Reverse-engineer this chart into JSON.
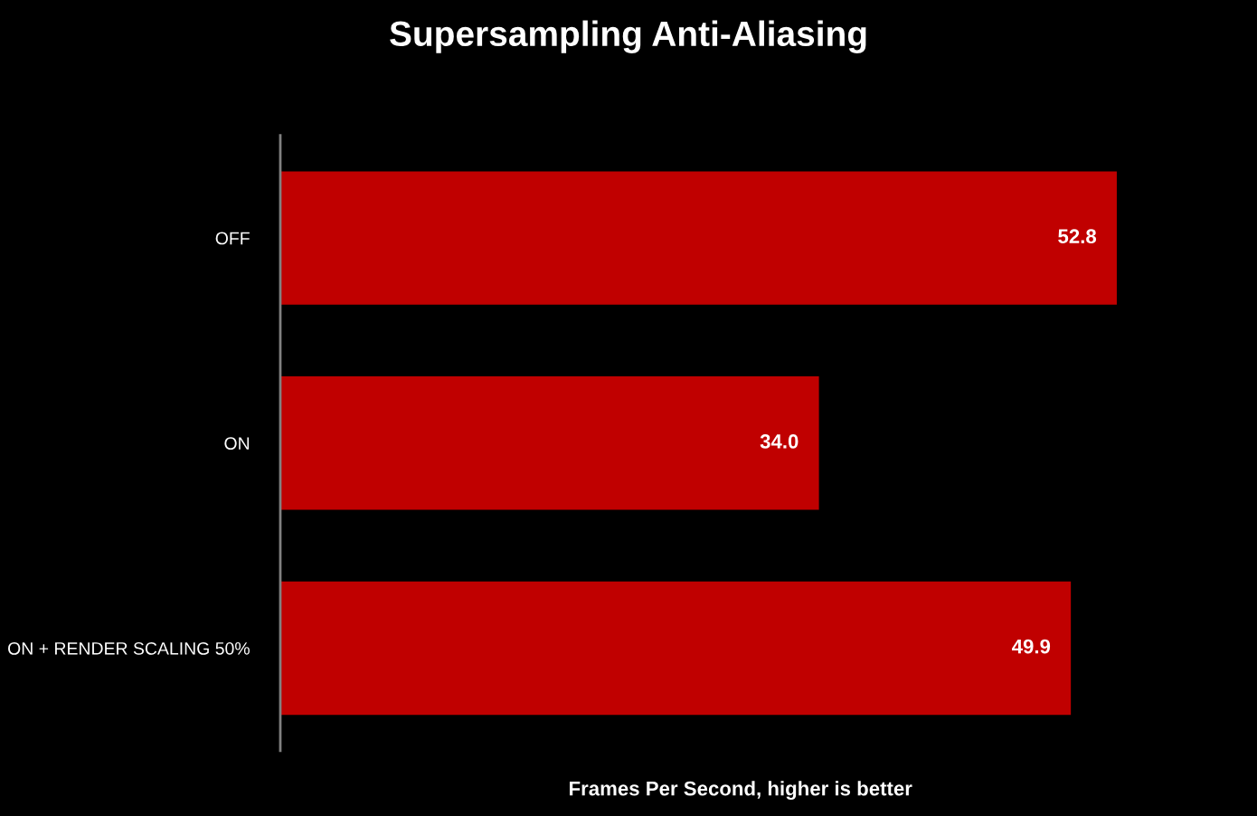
{
  "chart_data": {
    "type": "bar",
    "orientation": "horizontal",
    "title": "Supersampling Anti-Aliasing",
    "xlabel": "Frames Per Second, higher is better",
    "categories": [
      "OFF",
      "ON",
      "ON + RENDER SCALING 50%"
    ],
    "values": [
      52.8,
      34.0,
      49.9
    ],
    "value_labels": [
      "52.8",
      "34.0",
      "49.9"
    ],
    "color": "#c00000",
    "tick_labels": "y",
    "grid": false,
    "legend": false
  }
}
